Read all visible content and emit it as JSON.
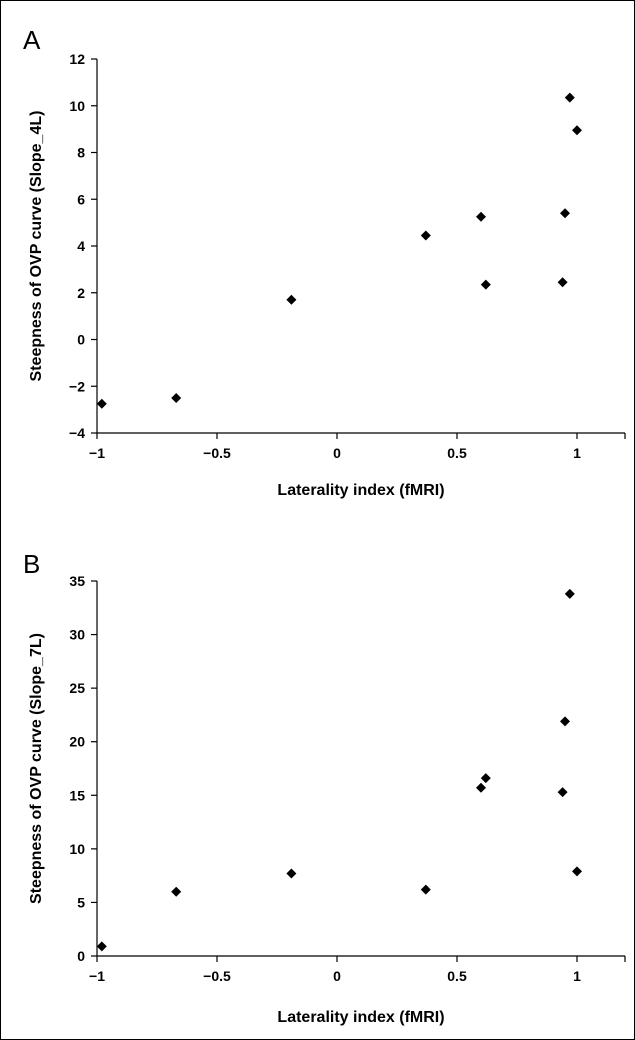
{
  "chart_data": [
    {
      "type": "scatter",
      "panel": "A",
      "xlabel": "Laterality index (fMRI)",
      "ylabel": "Steepness of OVP curve (Slope_4L)",
      "xlim": [
        -1,
        1.2
      ],
      "ylim": [
        -4,
        12
      ],
      "xticks": [
        -1,
        -0.5,
        0,
        0.5,
        1
      ],
      "xtick_labels": [
        "−1",
        "−0.5",
        "0",
        "0.5",
        "1"
      ],
      "yticks": [
        -4,
        -2,
        0,
        2,
        4,
        6,
        8,
        10,
        12
      ],
      "ytick_labels": [
        "−4",
        "−2",
        "0",
        "2",
        "4",
        "6",
        "8",
        "10",
        "12"
      ],
      "grid": false,
      "marker": "diamond",
      "color": "#000000",
      "points": [
        {
          "x": -0.98,
          "y": -2.75
        },
        {
          "x": -0.67,
          "y": -2.5
        },
        {
          "x": -0.19,
          "y": 1.7
        },
        {
          "x": 0.37,
          "y": 4.45
        },
        {
          "x": 0.6,
          "y": 5.25
        },
        {
          "x": 0.62,
          "y": 2.35
        },
        {
          "x": 0.94,
          "y": 2.45
        },
        {
          "x": 0.95,
          "y": 5.4
        },
        {
          "x": 0.97,
          "y": 10.35
        },
        {
          "x": 1.0,
          "y": 8.95
        }
      ]
    },
    {
      "type": "scatter",
      "panel": "B",
      "xlabel": "Laterality index (fMRI)",
      "ylabel": "Steepness of OVP curve (Slope_7L)",
      "xlim": [
        -1,
        1.2
      ],
      "ylim": [
        0,
        35
      ],
      "xticks": [
        -1,
        -0.5,
        0,
        0.5,
        1
      ],
      "xtick_labels": [
        "−1",
        "−0.5",
        "0",
        "0.5",
        "1"
      ],
      "yticks": [
        0,
        5,
        10,
        15,
        20,
        25,
        30,
        35
      ],
      "ytick_labels": [
        "0",
        "5",
        "10",
        "15",
        "20",
        "25",
        "30",
        "35"
      ],
      "grid": false,
      "marker": "diamond",
      "color": "#000000",
      "points": [
        {
          "x": -0.98,
          "y": 0.9
        },
        {
          "x": -0.67,
          "y": 6.0
        },
        {
          "x": -0.19,
          "y": 7.7
        },
        {
          "x": 0.37,
          "y": 6.2
        },
        {
          "x": 0.6,
          "y": 15.7
        },
        {
          "x": 0.62,
          "y": 16.6
        },
        {
          "x": 0.94,
          "y": 15.3
        },
        {
          "x": 0.95,
          "y": 21.9
        },
        {
          "x": 0.97,
          "y": 33.8
        },
        {
          "x": 1.0,
          "y": 7.9
        }
      ]
    }
  ]
}
